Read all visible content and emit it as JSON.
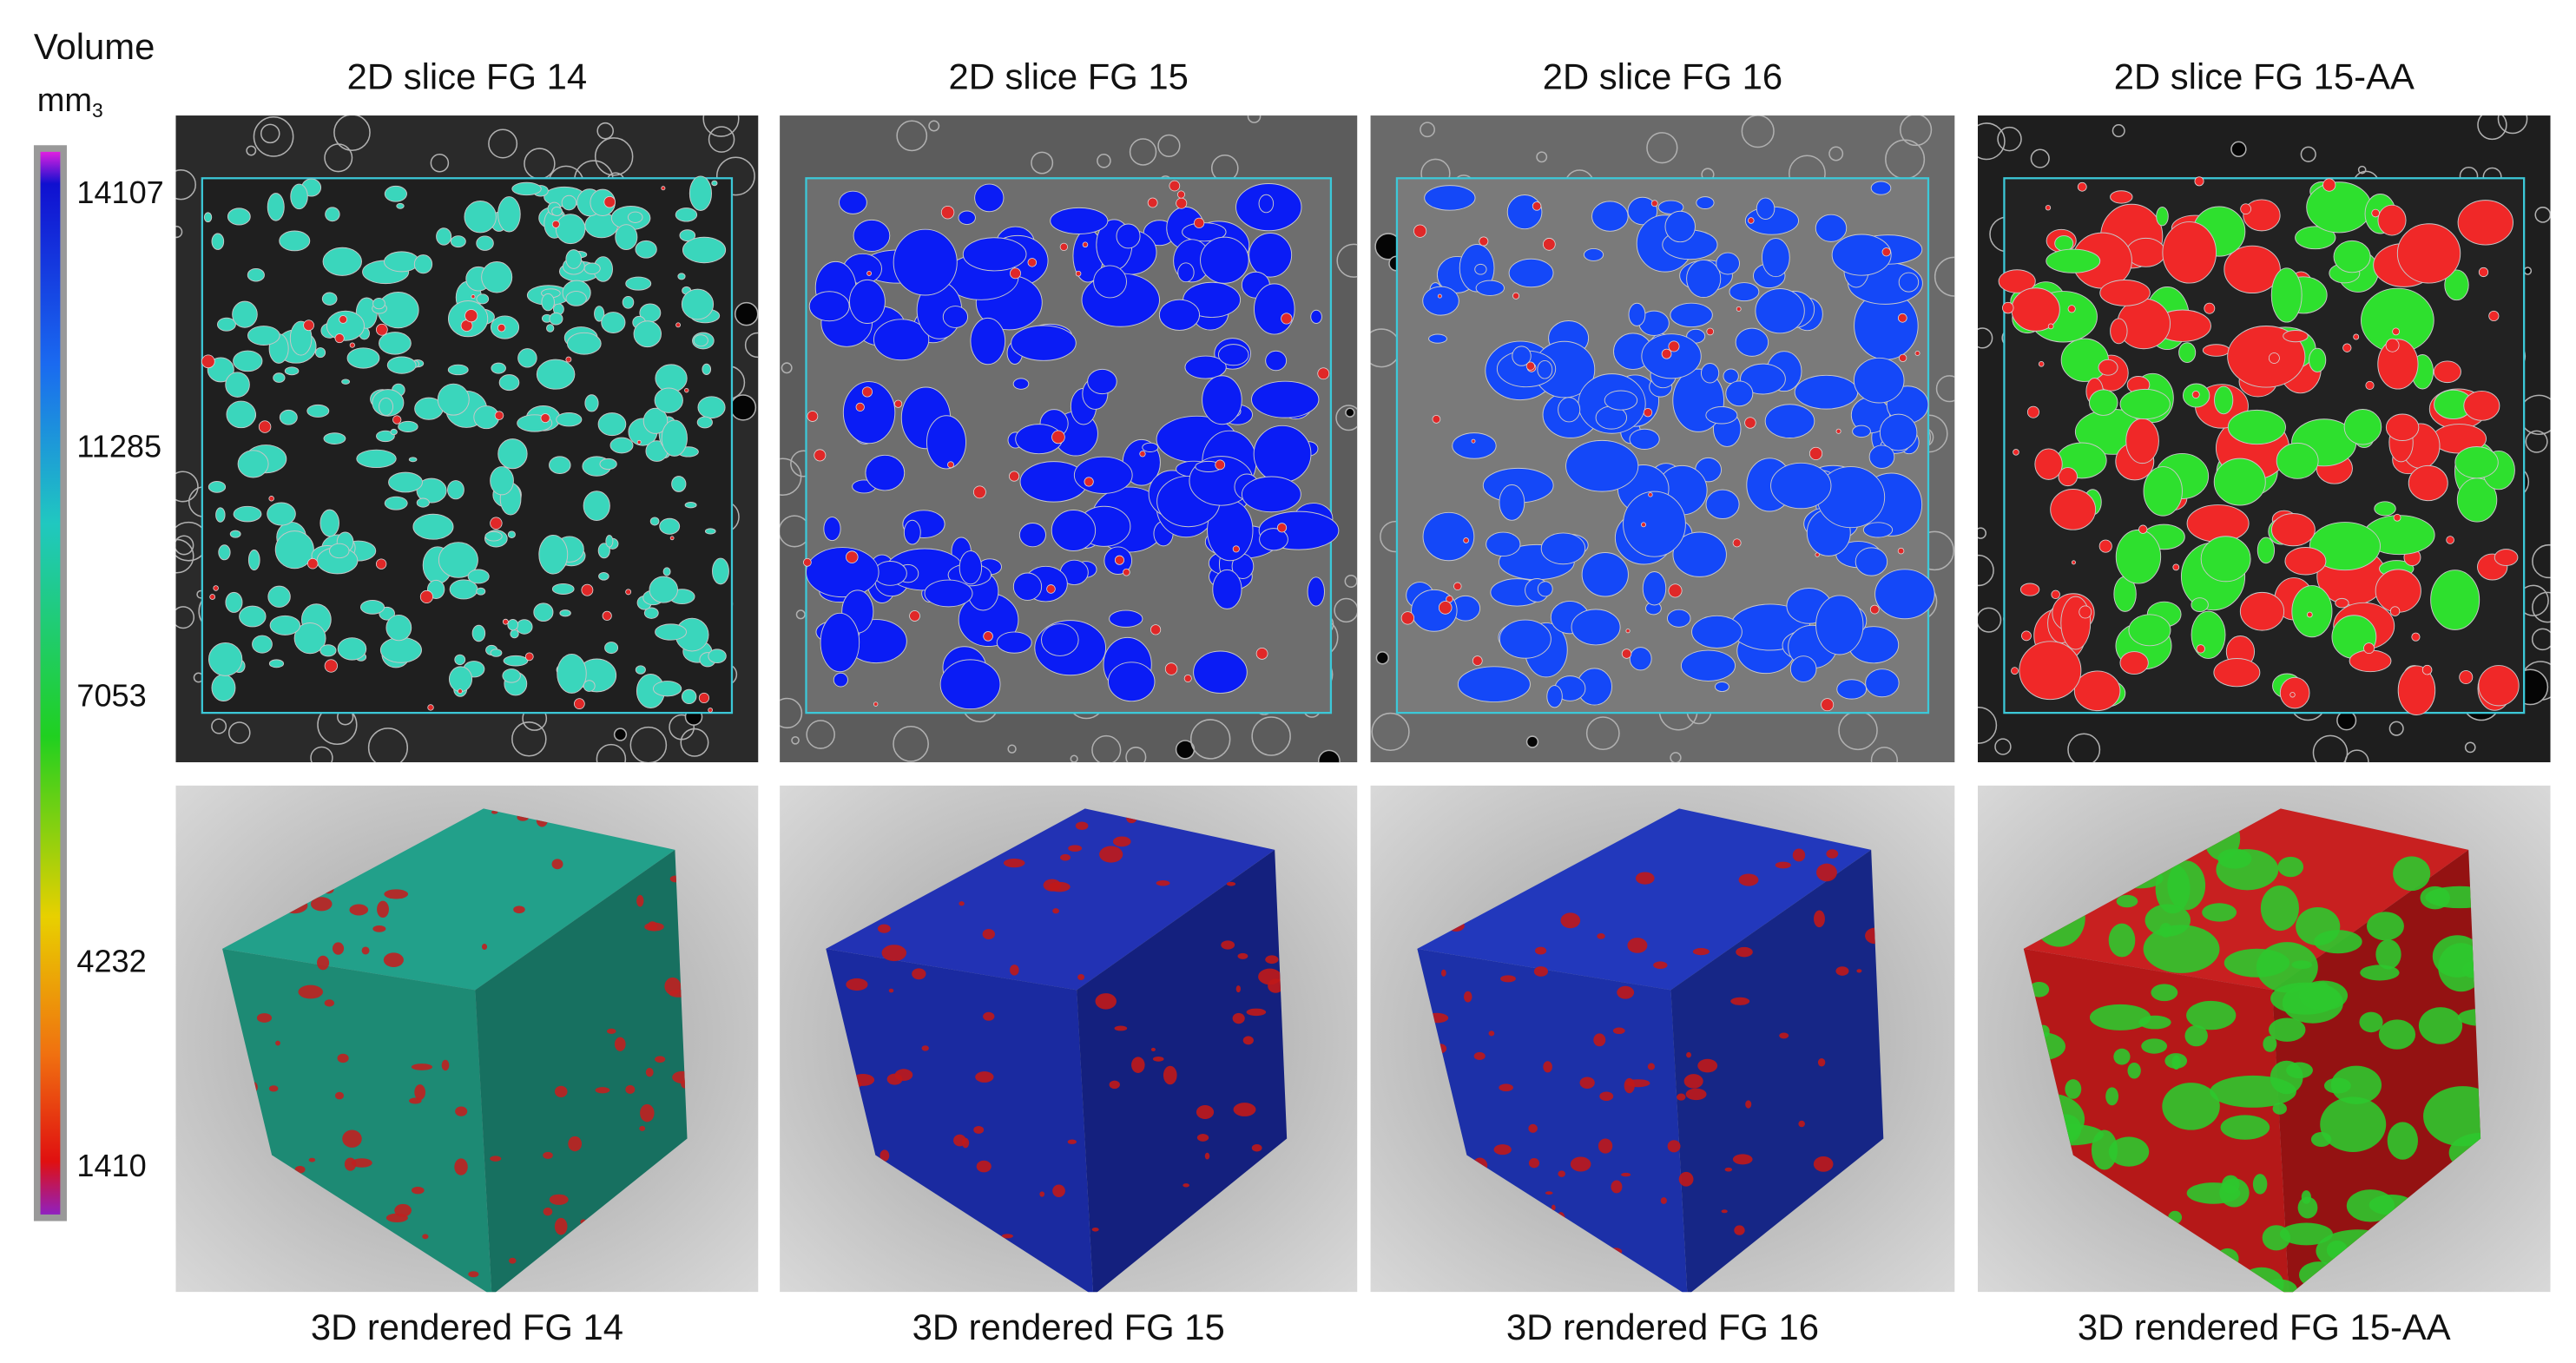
{
  "colorbar": {
    "title": "Volume",
    "unit": "mm",
    "unit_superscript": "3",
    "tick_labels": [
      "14107",
      "11285",
      "7053",
      "4232",
      "1410"
    ]
  },
  "panels": [
    {
      "slice_title": "2D slice FG 14",
      "render_caption": "3D rendered FG 14"
    },
    {
      "slice_title": "2D slice FG 15",
      "render_caption": "3D rendered FG 15"
    },
    {
      "slice_title": "2D slice FG 16",
      "render_caption": "3D rendered FG 16"
    },
    {
      "slice_title": "2D slice FG 15-AA",
      "render_caption": "3D rendered FG 15-AA"
    }
  ]
}
